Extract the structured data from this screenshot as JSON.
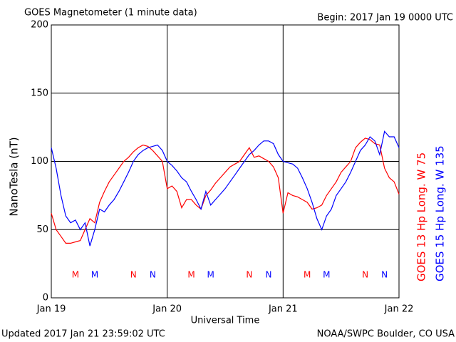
{
  "chart_data": {
    "type": "line",
    "title": "GOES Magnetometer (1 minute data)",
    "subtitle": "Begin:  2017 Jan 19 0000 UTC",
    "ylabel": "NanoTesla (nT)",
    "xlabel": "Universal Time",
    "footer_left": "Updated 2017 Jan 21 23:59:02 UTC",
    "footer_right": "NOAA/SWPC Boulder, CO USA",
    "x": [
      0,
      1,
      2,
      3,
      4,
      5,
      6,
      7,
      8,
      9,
      10,
      11,
      12,
      13,
      14,
      15,
      16,
      17,
      18,
      19,
      20,
      21,
      22,
      23,
      24,
      25,
      26,
      27,
      28,
      29,
      30,
      31,
      32,
      33,
      34,
      35,
      36,
      37,
      38,
      39,
      40,
      41,
      42,
      43,
      44,
      45,
      46,
      47,
      48,
      49,
      50,
      51,
      52,
      53,
      54,
      55,
      56,
      57,
      58,
      59,
      60,
      61,
      62,
      63,
      64,
      65,
      66,
      67,
      68,
      69,
      70,
      71,
      72
    ],
    "xlim": [
      0,
      72
    ],
    "xticks": [
      {
        "value": 0,
        "label": "Jan 19"
      },
      {
        "value": 24,
        "label": "Jan 20"
      },
      {
        "value": 48,
        "label": "Jan 21"
      },
      {
        "value": 72,
        "label": "Jan 22"
      }
    ],
    "ylim": [
      0,
      200
    ],
    "yticks": [
      0,
      50,
      100,
      150,
      200
    ],
    "grid": true,
    "series": [
      {
        "name": "GOES 13 Hp  Long. W 75",
        "color": "#ff0000",
        "values": [
          62,
          50,
          45,
          40,
          40,
          41,
          42,
          50,
          58,
          55,
          70,
          78,
          85,
          90,
          95,
          100,
          103,
          107,
          110,
          112,
          111,
          108,
          104,
          100,
          80,
          82,
          78,
          66,
          72,
          72,
          68,
          65,
          75,
          79,
          84,
          88,
          92,
          96,
          98,
          100,
          105,
          110,
          103,
          104,
          102,
          100,
          96,
          88,
          62,
          77,
          75,
          74,
          72,
          70,
          65,
          66,
          68,
          75,
          80,
          85,
          92,
          96,
          100,
          110,
          114,
          117,
          116,
          113,
          112,
          95,
          88,
          85,
          76
        ]
      },
      {
        "name": "GOES 15 Hp  Long. W 135",
        "color": "#0000ff",
        "values": [
          110,
          95,
          75,
          60,
          55,
          57,
          50,
          55,
          38,
          50,
          65,
          63,
          68,
          72,
          78,
          85,
          92,
          100,
          105,
          108,
          110,
          111,
          112,
          108,
          100,
          97,
          93,
          88,
          85,
          78,
          72,
          65,
          78,
          68,
          72,
          76,
          80,
          85,
          90,
          95,
          100,
          105,
          108,
          112,
          115,
          115,
          113,
          105,
          100,
          99,
          98,
          95,
          88,
          80,
          70,
          58,
          50,
          60,
          65,
          75,
          80,
          85,
          92,
          100,
          108,
          112,
          118,
          115,
          105,
          122,
          118,
          118,
          110
        ]
      }
    ],
    "annotations": [
      {
        "text": "M",
        "x": 5,
        "color": "#ff0000"
      },
      {
        "text": "M",
        "x": 9,
        "color": "#0000ff"
      },
      {
        "text": "N",
        "x": 17,
        "color": "#ff0000"
      },
      {
        "text": "N",
        "x": 21,
        "color": "#0000ff"
      },
      {
        "text": "M",
        "x": 29,
        "color": "#ff0000"
      },
      {
        "text": "M",
        "x": 33,
        "color": "#0000ff"
      },
      {
        "text": "N",
        "x": 41,
        "color": "#ff0000"
      },
      {
        "text": "N",
        "x": 45,
        "color": "#0000ff"
      },
      {
        "text": "M",
        "x": 53,
        "color": "#ff0000"
      },
      {
        "text": "M",
        "x": 57,
        "color": "#0000ff"
      },
      {
        "text": "N",
        "x": 65,
        "color": "#ff0000"
      },
      {
        "text": "N",
        "x": 69,
        "color": "#0000ff"
      }
    ]
  }
}
